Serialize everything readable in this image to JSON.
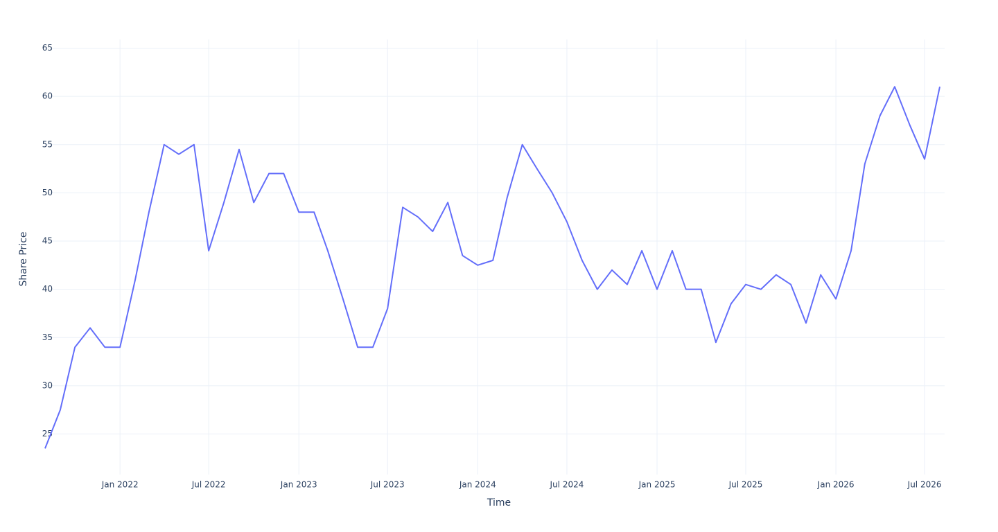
{
  "chart_data": {
    "type": "line",
    "x_label": "Time",
    "y_label": "Share Price",
    "x": [
      "2021-08",
      "2021-09",
      "2021-10",
      "2021-11",
      "2021-12",
      "2022-01",
      "2022-02",
      "2022-03",
      "2022-04",
      "2022-05",
      "2022-06",
      "2022-07",
      "2022-08",
      "2022-09",
      "2022-10",
      "2022-11",
      "2022-12",
      "2023-01",
      "2023-02",
      "2023-03",
      "2023-04",
      "2023-05",
      "2023-06",
      "2023-07",
      "2023-08",
      "2023-09",
      "2023-10",
      "2023-11",
      "2023-12",
      "2024-01",
      "2024-02",
      "2024-03",
      "2024-04",
      "2024-05",
      "2024-06",
      "2024-07",
      "2024-08",
      "2024-09",
      "2024-10",
      "2024-11",
      "2024-12",
      "2025-01",
      "2025-02",
      "2025-03",
      "2025-04",
      "2025-05",
      "2025-06",
      "2025-07",
      "2025-08",
      "2025-09",
      "2025-10",
      "2025-11",
      "2025-12",
      "2026-01",
      "2026-02",
      "2026-03",
      "2026-04",
      "2026-05",
      "2026-06",
      "2026-07",
      "2026-08"
    ],
    "series": [
      {
        "color": "#636efa",
        "values": [
          23.5,
          27.5,
          34,
          36,
          34,
          34,
          41,
          48,
          55,
          54,
          55,
          44,
          49,
          54.5,
          49,
          52,
          52,
          48,
          48,
          44,
          39,
          34,
          34,
          38,
          48.5,
          47.5,
          46,
          49,
          43.5,
          42.5,
          43,
          49.5,
          55,
          52.5,
          50,
          47,
          43,
          40,
          42,
          40.5,
          44,
          40,
          44,
          40,
          40,
          34.5,
          38.5,
          40.5,
          40,
          41.5,
          40.5,
          36.5,
          41.5,
          39,
          44,
          53,
          58,
          61,
          57,
          53.5,
          61
        ]
      }
    ],
    "xlim": [
      "2021-08",
      "2026-08"
    ],
    "xticks": [
      {
        "value": "2022-01",
        "label": "Jan 2022"
      },
      {
        "value": "2022-07",
        "label": "Jul 2022"
      },
      {
        "value": "2023-01",
        "label": "Jan 2023"
      },
      {
        "value": "2023-07",
        "label": "Jul 2023"
      },
      {
        "value": "2024-01",
        "label": "Jan 2024"
      },
      {
        "value": "2024-07",
        "label": "Jul 2024"
      },
      {
        "value": "2025-01",
        "label": "Jan 2025"
      },
      {
        "value": "2025-07",
        "label": "Jul 2025"
      },
      {
        "value": "2026-01",
        "label": "Jan 2026"
      },
      {
        "value": "2026-07",
        "label": "Jul 2026"
      }
    ],
    "ylim": [
      20.8,
      65.9
    ],
    "yticks": [
      25,
      30,
      35,
      40,
      45,
      50,
      55,
      60,
      65
    ],
    "grid": true
  }
}
